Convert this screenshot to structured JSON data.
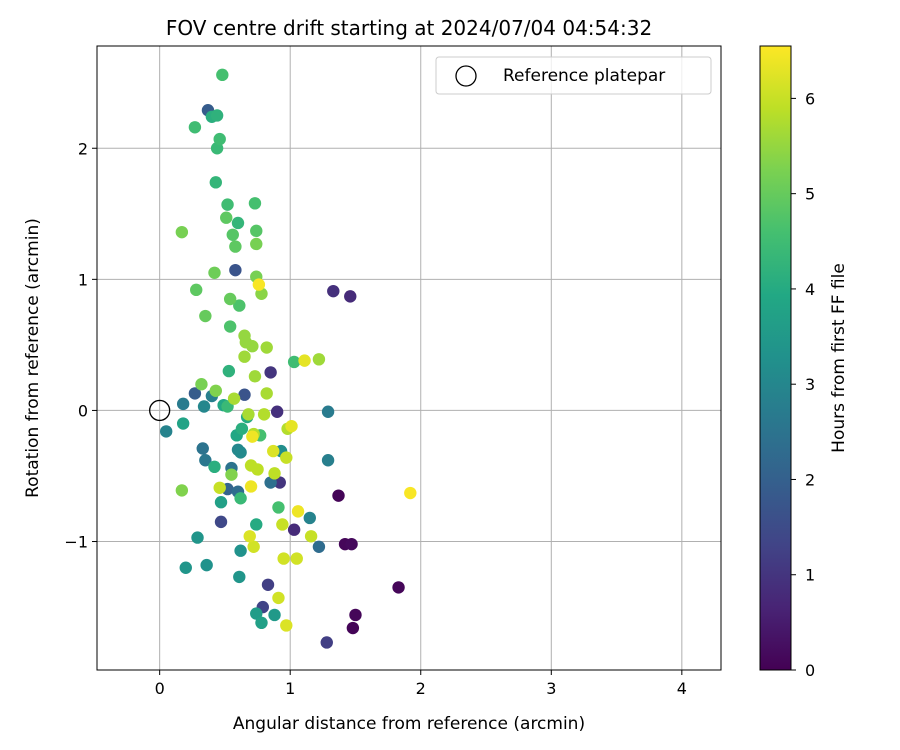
{
  "chart_data": {
    "type": "scatter",
    "title": "FOV centre drift starting at 2024/07/04 04:54:32",
    "xlabel": "Angular distance from reference (arcmin)",
    "ylabel": "Rotation from reference (arcmin)",
    "xlim": [
      -0.48,
      4.3
    ],
    "ylim": [
      -1.98,
      2.78
    ],
    "xticks": [
      0,
      1,
      2,
      3,
      4
    ],
    "xtick_labels": [
      "0",
      "1",
      "2",
      "3",
      "4"
    ],
    "yticks": [
      -1,
      0,
      1,
      2
    ],
    "ytick_labels": [
      "−1",
      "0",
      "1",
      "2"
    ],
    "grid": true,
    "legend": {
      "placement": "top-right",
      "entries": [
        {
          "label": "Reference platepar",
          "marker": "open-circle"
        }
      ]
    },
    "reference_point": {
      "x": 0,
      "y": 0
    },
    "colorbar": {
      "label": "Hours from first FF file",
      "colormap": "viridis",
      "range": [
        0,
        6.55
      ],
      "ticks": [
        0,
        1,
        2,
        3,
        4,
        5,
        6
      ],
      "tick_labels": [
        "0",
        "1",
        "2",
        "3",
        "4",
        "5",
        "6"
      ]
    },
    "points": [
      {
        "x": 1.37,
        "y": -0.65,
        "h": 0.05
      },
      {
        "x": 1.42,
        "y": -1.02,
        "h": 0.1
      },
      {
        "x": 1.47,
        "y": -1.02,
        "h": 0.15
      },
      {
        "x": 1.83,
        "y": -1.35,
        "h": 0.1
      },
      {
        "x": 1.48,
        "y": -1.66,
        "h": 0.05
      },
      {
        "x": 1.5,
        "y": -1.56,
        "h": 0.1
      },
      {
        "x": 1.46,
        "y": 0.87,
        "h": 0.8
      },
      {
        "x": 1.33,
        "y": 0.91,
        "h": 0.9
      },
      {
        "x": 1.03,
        "y": -0.91,
        "h": 0.8
      },
      {
        "x": 0.85,
        "y": 0.29,
        "h": 1.0
      },
      {
        "x": 0.92,
        "y": -0.55,
        "h": 1.0
      },
      {
        "x": 0.9,
        "y": -0.01,
        "h": 0.9
      },
      {
        "x": 0.83,
        "y": -1.33,
        "h": 1.2
      },
      {
        "x": 0.79,
        "y": -1.5,
        "h": 1.3
      },
      {
        "x": 1.28,
        "y": -1.77,
        "h": 1.2
      },
      {
        "x": 0.47,
        "y": -0.85,
        "h": 1.4
      },
      {
        "x": 0.58,
        "y": 1.07,
        "h": 1.7
      },
      {
        "x": 0.65,
        "y": 0.12,
        "h": 1.7
      },
      {
        "x": 0.37,
        "y": 2.29,
        "h": 1.9
      },
      {
        "x": 0.27,
        "y": 0.13,
        "h": 1.9
      },
      {
        "x": 1.22,
        "y": -1.04,
        "h": 2.3
      },
      {
        "x": 0.52,
        "y": -0.6,
        "h": 2.1
      },
      {
        "x": 0.85,
        "y": -0.55,
        "h": 2.4
      },
      {
        "x": 0.6,
        "y": -0.62,
        "h": 2.3
      },
      {
        "x": 0.33,
        "y": -0.29,
        "h": 2.5
      },
      {
        "x": 0.35,
        "y": -0.38,
        "h": 2.6
      },
      {
        "x": 0.55,
        "y": -0.44,
        "h": 2.5
      },
      {
        "x": 0.4,
        "y": 0.11,
        "h": 2.8
      },
      {
        "x": 0.18,
        "y": 0.05,
        "h": 2.7
      },
      {
        "x": 0.05,
        "y": -0.16,
        "h": 2.9
      },
      {
        "x": 1.29,
        "y": -0.01,
        "h": 2.7
      },
      {
        "x": 1.29,
        "y": -0.38,
        "h": 2.8
      },
      {
        "x": 1.15,
        "y": -0.82,
        "h": 2.9
      },
      {
        "x": 0.34,
        "y": 0.03,
        "h": 3.0
      },
      {
        "x": 0.6,
        "y": -0.3,
        "h": 3.0
      },
      {
        "x": 0.62,
        "y": -0.32,
        "h": 3.1
      },
      {
        "x": 0.93,
        "y": -0.31,
        "h": 3.2
      },
      {
        "x": 0.36,
        "y": -1.18,
        "h": 3.3
      },
      {
        "x": 0.2,
        "y": -1.2,
        "h": 3.4
      },
      {
        "x": 0.29,
        "y": -0.97,
        "h": 3.4
      },
      {
        "x": 0.62,
        "y": -1.07,
        "h": 3.3
      },
      {
        "x": 0.61,
        "y": -1.27,
        "h": 3.4
      },
      {
        "x": 0.88,
        "y": -1.56,
        "h": 3.5
      },
      {
        "x": 0.74,
        "y": -1.55,
        "h": 3.6
      },
      {
        "x": 0.78,
        "y": -1.62,
        "h": 3.7
      },
      {
        "x": 0.47,
        "y": -0.7,
        "h": 3.7
      },
      {
        "x": 0.18,
        "y": -0.1,
        "h": 3.8
      },
      {
        "x": 0.49,
        "y": 0.04,
        "h": 3.9
      },
      {
        "x": 0.59,
        "y": -0.19,
        "h": 3.9
      },
      {
        "x": 0.67,
        "y": -0.05,
        "h": 4.0
      },
      {
        "x": 0.74,
        "y": -0.87,
        "h": 4.0
      },
      {
        "x": 0.63,
        "y": -0.14,
        "h": 4.1
      },
      {
        "x": 0.42,
        "y": -0.43,
        "h": 4.1
      },
      {
        "x": 0.53,
        "y": 0.3,
        "h": 4.2
      },
      {
        "x": 0.4,
        "y": 2.24,
        "h": 4.1
      },
      {
        "x": 0.44,
        "y": 2.25,
        "h": 4.2
      },
      {
        "x": 0.43,
        "y": 1.74,
        "h": 4.3
      },
      {
        "x": 0.6,
        "y": 1.43,
        "h": 4.3
      },
      {
        "x": 0.44,
        "y": 2.0,
        "h": 4.4
      },
      {
        "x": 0.46,
        "y": 2.07,
        "h": 4.5
      },
      {
        "x": 0.52,
        "y": 1.57,
        "h": 4.5
      },
      {
        "x": 0.73,
        "y": 1.58,
        "h": 4.6
      },
      {
        "x": 0.27,
        "y": 2.16,
        "h": 4.5
      },
      {
        "x": 0.48,
        "y": 2.56,
        "h": 4.6
      },
      {
        "x": 0.52,
        "y": 0.03,
        "h": 4.4
      },
      {
        "x": 0.62,
        "y": -0.67,
        "h": 4.4
      },
      {
        "x": 0.77,
        "y": -0.19,
        "h": 4.6
      },
      {
        "x": 0.91,
        "y": -0.74,
        "h": 4.6
      },
      {
        "x": 1.03,
        "y": 0.37,
        "h": 4.5
      },
      {
        "x": 0.54,
        "y": 0.64,
        "h": 4.7
      },
      {
        "x": 0.61,
        "y": 0.8,
        "h": 4.7
      },
      {
        "x": 0.74,
        "y": 1.37,
        "h": 4.8
      },
      {
        "x": 0.56,
        "y": 1.34,
        "h": 4.8
      },
      {
        "x": 0.58,
        "y": 1.25,
        "h": 4.9
      },
      {
        "x": 0.51,
        "y": 1.47,
        "h": 4.9
      },
      {
        "x": 0.28,
        "y": 0.92,
        "h": 4.9
      },
      {
        "x": 0.35,
        "y": 0.72,
        "h": 5.0
      },
      {
        "x": 0.54,
        "y": 0.85,
        "h": 5.0
      },
      {
        "x": 0.74,
        "y": 1.27,
        "h": 5.2
      },
      {
        "x": 0.74,
        "y": 1.02,
        "h": 5.2
      },
      {
        "x": 0.42,
        "y": 1.05,
        "h": 5.1
      },
      {
        "x": 0.17,
        "y": 1.36,
        "h": 5.2
      },
      {
        "x": 0.17,
        "y": -0.61,
        "h": 5.3
      },
      {
        "x": 0.32,
        "y": 0.2,
        "h": 5.2
      },
      {
        "x": 0.55,
        "y": -0.49,
        "h": 5.3
      },
      {
        "x": 0.43,
        "y": 0.15,
        "h": 5.3
      },
      {
        "x": 0.78,
        "y": 0.89,
        "h": 5.4
      },
      {
        "x": 0.65,
        "y": 0.57,
        "h": 5.5
      },
      {
        "x": 0.66,
        "y": 0.52,
        "h": 5.5
      },
      {
        "x": 0.71,
        "y": 0.49,
        "h": 5.5
      },
      {
        "x": 0.82,
        "y": 0.48,
        "h": 5.6
      },
      {
        "x": 0.65,
        "y": 0.41,
        "h": 5.6
      },
      {
        "x": 1.22,
        "y": 0.39,
        "h": 5.6
      },
      {
        "x": 0.73,
        "y": 0.26,
        "h": 5.6
      },
      {
        "x": 0.82,
        "y": 0.13,
        "h": 5.7
      },
      {
        "x": 0.57,
        "y": 0.09,
        "h": 5.7
      },
      {
        "x": 0.68,
        "y": -0.03,
        "h": 5.7
      },
      {
        "x": 0.8,
        "y": -0.03,
        "h": 5.8
      },
      {
        "x": 0.98,
        "y": -0.14,
        "h": 5.8
      },
      {
        "x": 0.72,
        "y": -0.18,
        "h": 5.8
      },
      {
        "x": 0.75,
        "y": -0.45,
        "h": 5.9
      },
      {
        "x": 0.7,
        "y": -0.42,
        "h": 5.9
      },
      {
        "x": 0.88,
        "y": -0.48,
        "h": 5.9
      },
      {
        "x": 0.97,
        "y": -0.36,
        "h": 6.0
      },
      {
        "x": 0.46,
        "y": -0.59,
        "h": 6.0
      },
      {
        "x": 0.94,
        "y": -0.87,
        "h": 6.0
      },
      {
        "x": 1.16,
        "y": -0.96,
        "h": 6.0
      },
      {
        "x": 0.72,
        "y": -1.04,
        "h": 6.1
      },
      {
        "x": 0.95,
        "y": -1.13,
        "h": 6.1
      },
      {
        "x": 1.05,
        "y": -1.13,
        "h": 6.1
      },
      {
        "x": 0.91,
        "y": -1.43,
        "h": 6.1
      },
      {
        "x": 0.97,
        "y": -1.64,
        "h": 6.2
      },
      {
        "x": 0.69,
        "y": -0.96,
        "h": 6.2
      },
      {
        "x": 0.87,
        "y": -0.31,
        "h": 6.2
      },
      {
        "x": 1.11,
        "y": 0.38,
        "h": 6.3
      },
      {
        "x": 1.01,
        "y": -0.12,
        "h": 6.3
      },
      {
        "x": 0.7,
        "y": -0.58,
        "h": 6.4
      },
      {
        "x": 1.06,
        "y": -0.77,
        "h": 6.4
      },
      {
        "x": 0.76,
        "y": 0.96,
        "h": 6.5
      },
      {
        "x": 1.92,
        "y": -0.63,
        "h": 6.5
      },
      {
        "x": 0.71,
        "y": -0.2,
        "h": 6.4
      }
    ]
  }
}
